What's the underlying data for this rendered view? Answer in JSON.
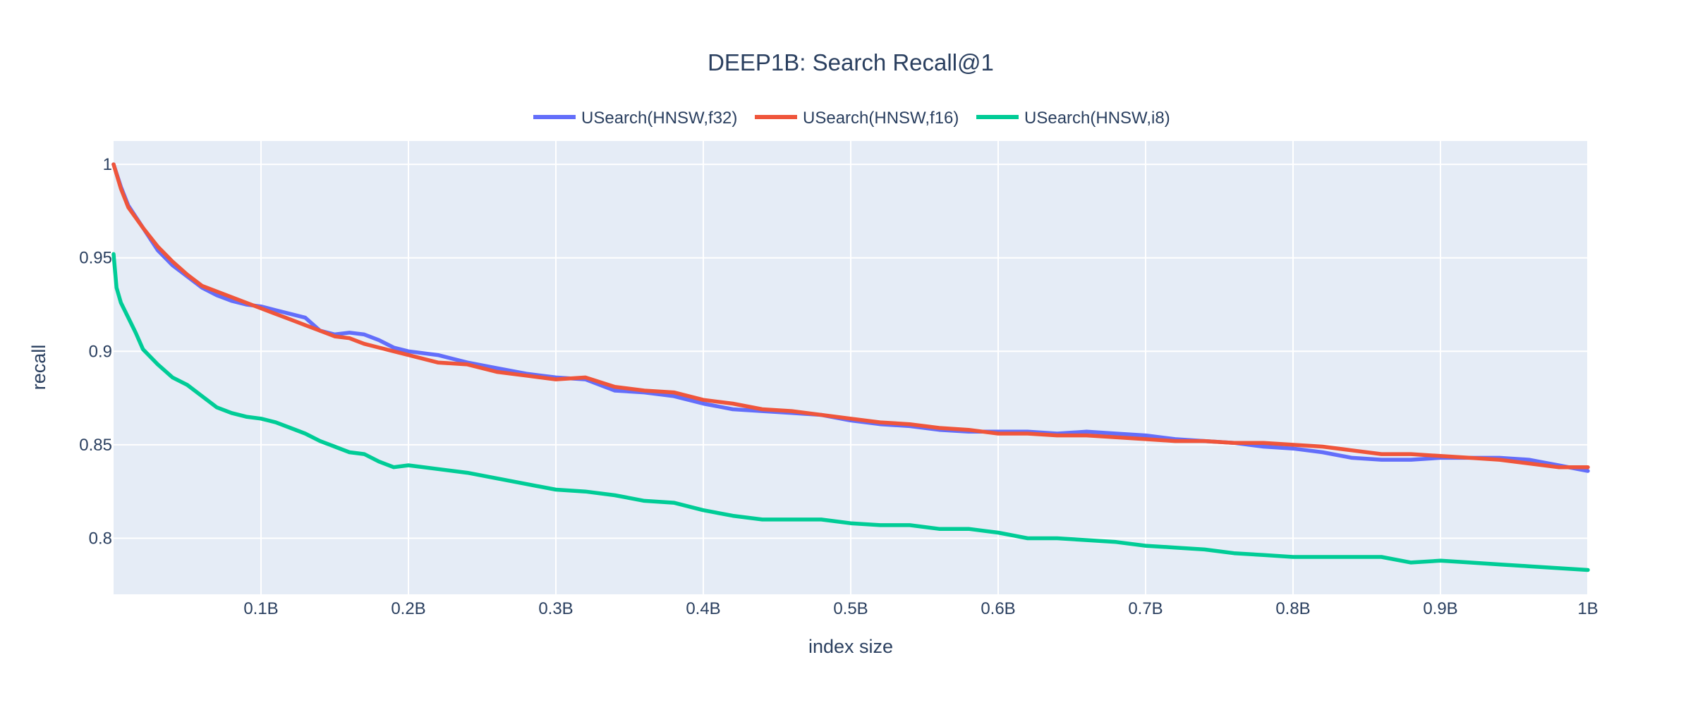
{
  "chart_data": {
    "type": "line",
    "title": "DEEP1B: Search Recall@1",
    "xlabel": "index size",
    "ylabel": "recall",
    "xlim": [
      0,
      1.0
    ],
    "ylim": [
      0.77,
      1.0125
    ],
    "x_ticks": [
      {
        "value": 0.1,
        "label": "0.1B"
      },
      {
        "value": 0.2,
        "label": "0.2B"
      },
      {
        "value": 0.3,
        "label": "0.3B"
      },
      {
        "value": 0.4,
        "label": "0.4B"
      },
      {
        "value": 0.5,
        "label": "0.5B"
      },
      {
        "value": 0.6,
        "label": "0.6B"
      },
      {
        "value": 0.7,
        "label": "0.7B"
      },
      {
        "value": 0.8,
        "label": "0.8B"
      },
      {
        "value": 0.9,
        "label": "0.9B"
      },
      {
        "value": 1.0,
        "label": "1B"
      }
    ],
    "y_ticks": [
      {
        "value": 0.8,
        "label": "0.8"
      },
      {
        "value": 0.85,
        "label": "0.85"
      },
      {
        "value": 0.9,
        "label": "0.9"
      },
      {
        "value": 0.95,
        "label": "0.95"
      },
      {
        "value": 1.0,
        "label": "1"
      }
    ],
    "grid": true,
    "legend_position": "top-center",
    "plot_background": "#e5ecf6",
    "series": [
      {
        "name": "USearch(HNSW,f32)",
        "color": "#636efa",
        "x": [
          0,
          0.005,
          0.01,
          0.02,
          0.03,
          0.04,
          0.05,
          0.06,
          0.07,
          0.08,
          0.09,
          0.1,
          0.11,
          0.12,
          0.13,
          0.14,
          0.15,
          0.16,
          0.17,
          0.18,
          0.19,
          0.2,
          0.22,
          0.24,
          0.26,
          0.28,
          0.3,
          0.32,
          0.34,
          0.36,
          0.38,
          0.4,
          0.42,
          0.44,
          0.46,
          0.48,
          0.5,
          0.52,
          0.54,
          0.56,
          0.58,
          0.6,
          0.62,
          0.64,
          0.66,
          0.68,
          0.7,
          0.72,
          0.74,
          0.76,
          0.78,
          0.8,
          0.82,
          0.84,
          0.86,
          0.88,
          0.9,
          0.92,
          0.94,
          0.96,
          0.98,
          1.0
        ],
        "values": [
          1.0,
          0.988,
          0.978,
          0.966,
          0.954,
          0.946,
          0.94,
          0.934,
          0.93,
          0.927,
          0.925,
          0.924,
          0.922,
          0.92,
          0.918,
          0.911,
          0.909,
          0.91,
          0.909,
          0.906,
          0.902,
          0.9,
          0.898,
          0.894,
          0.891,
          0.888,
          0.886,
          0.885,
          0.879,
          0.878,
          0.876,
          0.872,
          0.869,
          0.868,
          0.867,
          0.866,
          0.863,
          0.861,
          0.86,
          0.858,
          0.857,
          0.857,
          0.857,
          0.856,
          0.857,
          0.856,
          0.855,
          0.853,
          0.852,
          0.851,
          0.849,
          0.848,
          0.846,
          0.843,
          0.842,
          0.842,
          0.843,
          0.843,
          0.843,
          0.842,
          0.839,
          0.836
        ]
      },
      {
        "name": "USearch(HNSW,f16)",
        "color": "#ef553b",
        "x": [
          0,
          0.005,
          0.01,
          0.02,
          0.03,
          0.04,
          0.05,
          0.06,
          0.07,
          0.08,
          0.09,
          0.1,
          0.11,
          0.12,
          0.13,
          0.14,
          0.15,
          0.16,
          0.17,
          0.18,
          0.19,
          0.2,
          0.22,
          0.24,
          0.26,
          0.28,
          0.3,
          0.32,
          0.34,
          0.36,
          0.38,
          0.4,
          0.42,
          0.44,
          0.46,
          0.48,
          0.5,
          0.52,
          0.54,
          0.56,
          0.58,
          0.6,
          0.62,
          0.64,
          0.66,
          0.68,
          0.7,
          0.72,
          0.74,
          0.76,
          0.78,
          0.8,
          0.82,
          0.84,
          0.86,
          0.88,
          0.9,
          0.92,
          0.94,
          0.96,
          0.98,
          1.0
        ],
        "values": [
          1.0,
          0.987,
          0.977,
          0.966,
          0.956,
          0.948,
          0.941,
          0.935,
          0.932,
          0.929,
          0.926,
          0.923,
          0.92,
          0.917,
          0.914,
          0.911,
          0.908,
          0.907,
          0.904,
          0.902,
          0.9,
          0.898,
          0.894,
          0.893,
          0.889,
          0.887,
          0.885,
          0.886,
          0.881,
          0.879,
          0.878,
          0.874,
          0.872,
          0.869,
          0.868,
          0.866,
          0.864,
          0.862,
          0.861,
          0.859,
          0.858,
          0.856,
          0.856,
          0.855,
          0.855,
          0.854,
          0.853,
          0.852,
          0.852,
          0.851,
          0.851,
          0.85,
          0.849,
          0.847,
          0.845,
          0.845,
          0.844,
          0.843,
          0.842,
          0.84,
          0.838,
          0.838
        ]
      },
      {
        "name": "USearch(HNSW,i8)",
        "color": "#00cc96",
        "x": [
          0,
          0.002,
          0.005,
          0.01,
          0.015,
          0.02,
          0.03,
          0.04,
          0.05,
          0.06,
          0.07,
          0.08,
          0.09,
          0.1,
          0.11,
          0.12,
          0.13,
          0.14,
          0.15,
          0.16,
          0.17,
          0.18,
          0.19,
          0.2,
          0.22,
          0.24,
          0.26,
          0.28,
          0.3,
          0.32,
          0.34,
          0.36,
          0.38,
          0.4,
          0.42,
          0.44,
          0.46,
          0.48,
          0.5,
          0.52,
          0.54,
          0.56,
          0.58,
          0.6,
          0.62,
          0.64,
          0.66,
          0.68,
          0.7,
          0.72,
          0.74,
          0.76,
          0.78,
          0.8,
          0.82,
          0.84,
          0.86,
          0.88,
          0.9,
          0.92,
          0.94,
          0.96,
          0.98,
          1.0
        ],
        "values": [
          0.952,
          0.934,
          0.926,
          0.918,
          0.91,
          0.901,
          0.893,
          0.886,
          0.882,
          0.876,
          0.87,
          0.867,
          0.865,
          0.864,
          0.862,
          0.859,
          0.856,
          0.852,
          0.849,
          0.846,
          0.845,
          0.841,
          0.838,
          0.839,
          0.837,
          0.835,
          0.832,
          0.829,
          0.826,
          0.825,
          0.823,
          0.82,
          0.819,
          0.815,
          0.812,
          0.81,
          0.81,
          0.81,
          0.808,
          0.807,
          0.807,
          0.805,
          0.805,
          0.803,
          0.8,
          0.8,
          0.799,
          0.798,
          0.796,
          0.795,
          0.794,
          0.792,
          0.791,
          0.79,
          0.79,
          0.79,
          0.79,
          0.787,
          0.788,
          0.787,
          0.786,
          0.785,
          0.784,
          0.783
        ]
      }
    ]
  }
}
